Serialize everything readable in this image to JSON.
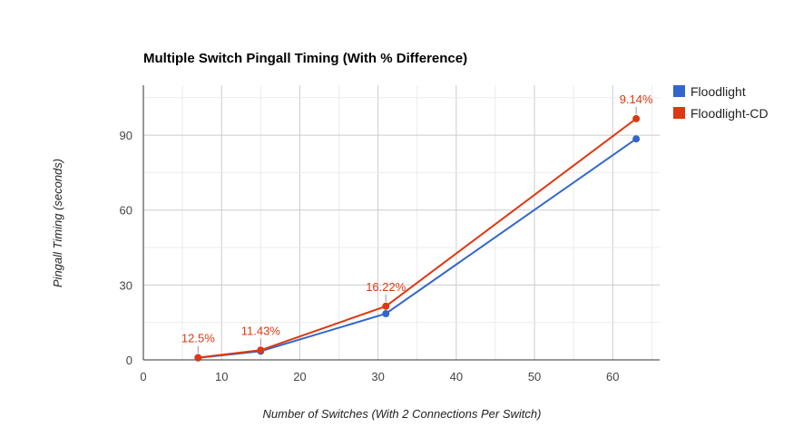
{
  "chart_data": {
    "type": "line",
    "title": "Multiple Switch Pingall Timing (With % Difference)",
    "xlabel": "Number of Switches (With 2 Connections Per Switch)",
    "ylabel": "Pingall Timing (seconds)",
    "xlim": [
      0,
      66
    ],
    "ylim": [
      0,
      110
    ],
    "x_ticks": [
      "0",
      "10",
      "20",
      "30",
      "40",
      "50",
      "60"
    ],
    "y_ticks": [
      "0",
      "30",
      "60",
      "90"
    ],
    "x_tick_values": [
      0,
      10,
      20,
      30,
      40,
      50,
      60
    ],
    "y_tick_values": [
      0,
      30,
      60,
      90
    ],
    "x_grid_values": [
      0,
      5,
      10,
      15,
      20,
      25,
      30,
      35,
      40,
      45,
      50,
      55,
      60,
      65
    ],
    "y_grid_values": [
      0,
      15,
      30,
      45,
      60,
      75,
      90,
      105
    ],
    "grid": true,
    "legend_position": "right",
    "x": [
      7,
      15,
      31,
      63
    ],
    "series": [
      {
        "name": "Floodlight",
        "color": "#3366cc",
        "values": [
          0.8,
          3.5,
          18.5,
          88.5
        ]
      },
      {
        "name": "Floodlight-CD",
        "color": "#dc3912",
        "values": [
          0.9,
          3.9,
          21.5,
          96.6
        ]
      }
    ],
    "annotations": [
      {
        "text": "12.5%",
        "x": 7,
        "y": 0.9
      },
      {
        "text": "11.43%",
        "x": 15,
        "y": 3.9
      },
      {
        "text": "16.22%",
        "x": 31,
        "y": 21.5
      },
      {
        "text": "9.14%",
        "x": 63,
        "y": 96.6
      }
    ],
    "annotation_color": "#dc3912"
  }
}
